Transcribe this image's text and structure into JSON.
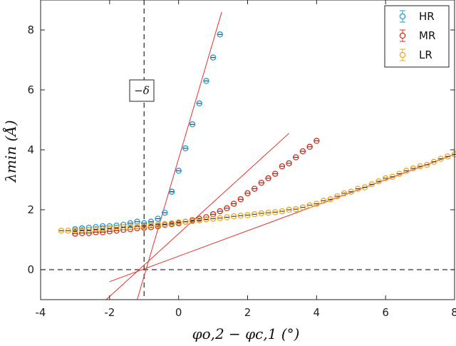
{
  "chart_data": {
    "type": "scatter",
    "xlabel": "φo,2 − φc,1 (°)",
    "ylabel": "λmin (Å)",
    "xlim": [
      -4,
      8
    ],
    "ylim": [
      -1,
      9
    ],
    "x_ticks": [
      -4,
      -2,
      0,
      2,
      4,
      6,
      8
    ],
    "y_ticks": [
      0,
      2,
      4,
      6,
      8
    ],
    "grid": false,
    "legend_position": "top-right",
    "reference_lines": [
      {
        "orientation": "vertical",
        "value": -1,
        "style": "dashed"
      },
      {
        "orientation": "horizontal",
        "value": 0,
        "style": "dashed"
      }
    ],
    "annotation": "−δ",
    "series": [
      {
        "name": "HR",
        "color": "#1f9fd6",
        "points": [
          [
            -3,
            1.35
          ],
          [
            -2.8,
            1.38
          ],
          [
            -2.6,
            1.4
          ],
          [
            -2.4,
            1.42
          ],
          [
            -2.2,
            1.45
          ],
          [
            -2.0,
            1.45
          ],
          [
            -1.8,
            1.47
          ],
          [
            -1.6,
            1.5
          ],
          [
            -1.4,
            1.55
          ],
          [
            -1.2,
            1.6
          ],
          [
            -1.0,
            1.55
          ],
          [
            -0.8,
            1.6
          ],
          [
            -0.6,
            1.7
          ],
          [
            -0.4,
            1.9
          ],
          [
            -0.2,
            2.6
          ],
          [
            -0.2,
            2.6
          ],
          [
            0.2,
            4.05
          ],
          [
            0.0,
            3.3
          ],
          [
            0.4,
            4.85
          ],
          [
            0.6,
            5.55
          ],
          [
            0.8,
            6.3
          ],
          [
            1.0,
            7.08
          ],
          [
            1.2,
            7.85
          ]
        ],
        "fit": [
          [
            -1.2,
            -1.0
          ],
          [
            1.25,
            8.6
          ]
        ]
      },
      {
        "name": "MR",
        "color": "#d5321d",
        "points": [
          [
            -3.0,
            1.2
          ],
          [
            -2.8,
            1.22
          ],
          [
            -2.6,
            1.22
          ],
          [
            -2.4,
            1.25
          ],
          [
            -2.2,
            1.25
          ],
          [
            -2.0,
            1.28
          ],
          [
            -1.8,
            1.3
          ],
          [
            -1.6,
            1.33
          ],
          [
            -1.4,
            1.35
          ],
          [
            -1.2,
            1.38
          ],
          [
            -1.0,
            1.4
          ],
          [
            -0.8,
            1.42
          ],
          [
            -0.6,
            1.45
          ],
          [
            -0.4,
            1.5
          ],
          [
            -0.2,
            1.52
          ],
          [
            0.0,
            1.55
          ],
          [
            0.2,
            1.6
          ],
          [
            0.4,
            1.65
          ],
          [
            0.6,
            1.7
          ],
          [
            0.8,
            1.75
          ],
          [
            1.0,
            1.85
          ],
          [
            1.2,
            1.95
          ],
          [
            1.4,
            2.05
          ],
          [
            1.6,
            2.2
          ],
          [
            1.8,
            2.35
          ],
          [
            2.0,
            2.55
          ],
          [
            2.2,
            2.7
          ],
          [
            2.4,
            2.9
          ],
          [
            2.6,
            3.05
          ],
          [
            2.8,
            3.2
          ],
          [
            3.0,
            3.45
          ],
          [
            3.2,
            3.55
          ],
          [
            3.4,
            3.75
          ],
          [
            3.6,
            3.95
          ],
          [
            3.8,
            4.1
          ],
          [
            4.0,
            4.3
          ]
        ],
        "fit": [
          [
            -2.1,
            -1.0
          ],
          [
            3.2,
            4.55
          ]
        ]
      },
      {
        "name": "LR",
        "color": "#eeaa1f",
        "points": [
          [
            -3.4,
            1.3
          ],
          [
            -3.2,
            1.3
          ],
          [
            -3.0,
            1.3
          ],
          [
            -2.8,
            1.32
          ],
          [
            -2.6,
            1.32
          ],
          [
            -2.4,
            1.35
          ],
          [
            -2.2,
            1.35
          ],
          [
            -2.0,
            1.38
          ],
          [
            -1.8,
            1.4
          ],
          [
            -1.6,
            1.42
          ],
          [
            -1.4,
            1.42
          ],
          [
            -1.2,
            1.45
          ],
          [
            -1.0,
            1.45
          ],
          [
            -0.8,
            1.48
          ],
          [
            -0.6,
            1.5
          ],
          [
            -0.4,
            1.52
          ],
          [
            -0.2,
            1.55
          ],
          [
            0.0,
            1.58
          ],
          [
            0.2,
            1.6
          ],
          [
            0.4,
            1.62
          ],
          [
            0.6,
            1.65
          ],
          [
            0.8,
            1.68
          ],
          [
            1.0,
            1.7
          ],
          [
            1.2,
            1.72
          ],
          [
            1.4,
            1.75
          ],
          [
            1.6,
            1.78
          ],
          [
            1.8,
            1.8
          ],
          [
            2.0,
            1.82
          ],
          [
            2.2,
            1.85
          ],
          [
            2.4,
            1.88
          ],
          [
            2.6,
            1.9
          ],
          [
            2.8,
            1.92
          ],
          [
            3.0,
            1.95
          ],
          [
            3.2,
            2.0
          ],
          [
            3.4,
            2.02
          ],
          [
            3.6,
            2.08
          ],
          [
            3.8,
            2.15
          ],
          [
            4.0,
            2.2
          ],
          [
            4.2,
            2.3
          ],
          [
            4.4,
            2.35
          ],
          [
            4.6,
            2.45
          ],
          [
            4.8,
            2.55
          ],
          [
            5.0,
            2.6
          ],
          [
            5.2,
            2.7
          ],
          [
            5.4,
            2.75
          ],
          [
            5.6,
            2.85
          ],
          [
            5.8,
            2.95
          ],
          [
            6.0,
            3.05
          ],
          [
            6.2,
            3.1
          ],
          [
            6.4,
            3.2
          ],
          [
            6.6,
            3.3
          ],
          [
            6.8,
            3.38
          ],
          [
            7.0,
            3.45
          ],
          [
            7.2,
            3.5
          ],
          [
            7.4,
            3.6
          ],
          [
            7.6,
            3.7
          ],
          [
            7.8,
            3.78
          ],
          [
            8.0,
            3.85
          ]
        ],
        "fit": [
          [
            -2.0,
            -0.4
          ],
          [
            8.0,
            3.85
          ]
        ]
      }
    ]
  }
}
